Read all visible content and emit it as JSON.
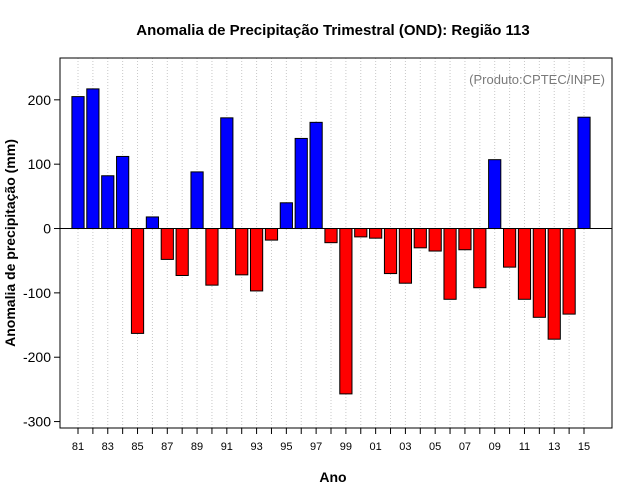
{
  "chart_data": {
    "type": "bar",
    "title": "Anomalia de Precipitação Trimestral (OND): Região 113",
    "annotation": "(Produto:CPTEC/INPE)",
    "xlabel": "Ano",
    "ylabel": "Anomalia de precipitação (mm)",
    "ylim": [
      -310,
      265
    ],
    "yticks": [
      -300,
      -200,
      -100,
      0,
      100,
      200
    ],
    "categories": [
      "81",
      "82",
      "83",
      "84",
      "85",
      "86",
      "87",
      "88",
      "89",
      "90",
      "91",
      "92",
      "93",
      "94",
      "95",
      "96",
      "97",
      "98",
      "99",
      "00",
      "01",
      "02",
      "03",
      "04",
      "05",
      "06",
      "07",
      "08",
      "09",
      "10",
      "11",
      "12",
      "13",
      "14",
      "15"
    ],
    "tick_labels_shown": [
      "81",
      "83",
      "85",
      "87",
      "89",
      "91",
      "93",
      "95",
      "97",
      "99",
      "01",
      "03",
      "05",
      "07",
      "09",
      "11",
      "13",
      "15"
    ],
    "values": [
      205,
      217,
      82,
      112,
      -163,
      18,
      -48,
      -73,
      88,
      -88,
      172,
      -72,
      -97,
      -18,
      40,
      140,
      165,
      -22,
      -257,
      -13,
      -15,
      -70,
      -85,
      -30,
      -35,
      -110,
      -33,
      -92,
      107,
      -60,
      -110,
      -138,
      -172,
      -133,
      173
    ],
    "colors": {
      "positive": "#0000ff",
      "negative": "#ff0000",
      "grid": "#c8c8c8",
      "axis": "#000000"
    }
  }
}
